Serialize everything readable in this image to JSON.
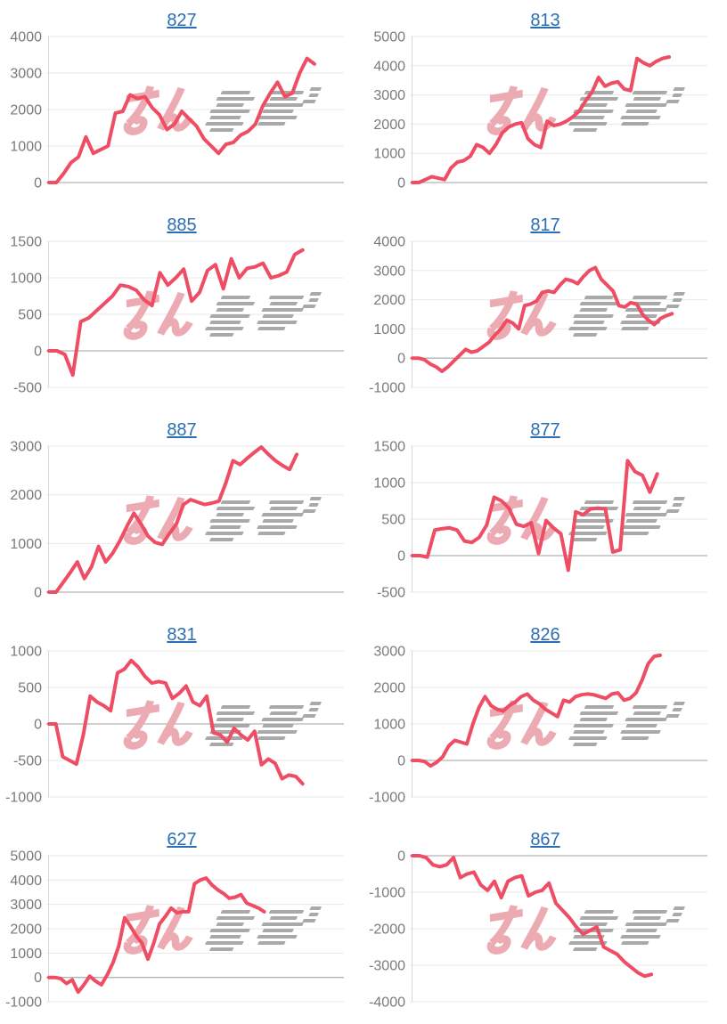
{
  "page": {
    "background": "#ffffff",
    "watermark_text": "みんレポ",
    "colors": {
      "title_link": "#2a6eb5",
      "series_line": "#ee4d64",
      "gridline": "#e8e8e8",
      "zero_line": "#b3b3b3",
      "axis_line": "#d8d8d8",
      "tick_label": "#7a7a7a",
      "watermark_pink": "#ecaab2",
      "watermark_gray": "#a2a2a2"
    }
  },
  "chart_data": [
    {
      "type": "line",
      "title": "827",
      "xlabel": "",
      "ylabel": "",
      "ylim": [
        0,
        4000
      ],
      "yticks": [
        4000,
        3000,
        2000,
        1000,
        0
      ],
      "grid": true,
      "legend": "none",
      "x_end_fraction": 0.9,
      "values": [
        0,
        0,
        250,
        550,
        700,
        1250,
        800,
        900,
        1000,
        1900,
        1950,
        2400,
        2300,
        2350,
        2050,
        1850,
        1450,
        1600,
        1950,
        1750,
        1550,
        1200,
        1000,
        800,
        1050,
        1100,
        1300,
        1400,
        1600,
        2100,
        2450,
        2750,
        2350,
        2450,
        3000,
        3400,
        3250
      ]
    },
    {
      "type": "line",
      "title": "813",
      "xlabel": "",
      "ylabel": "",
      "ylim": [
        0,
        5000
      ],
      "yticks": [
        5000,
        4000,
        3000,
        2000,
        1000,
        0
      ],
      "grid": true,
      "legend": "none",
      "x_end_fraction": 0.87,
      "values": [
        0,
        0,
        100,
        200,
        150,
        100,
        500,
        700,
        750,
        900,
        1300,
        1200,
        1000,
        1300,
        1700,
        1900,
        2000,
        2050,
        1500,
        1300,
        1200,
        2100,
        1950,
        2000,
        2100,
        2250,
        2450,
        2800,
        3100,
        3600,
        3300,
        3400,
        3450,
        3200,
        3150,
        4250,
        4100,
        4000,
        4150,
        4250,
        4300
      ]
    },
    {
      "type": "line",
      "title": "885",
      "xlabel": "",
      "ylabel": "",
      "ylim": [
        -500,
        1500
      ],
      "yticks": [
        1500,
        1000,
        500,
        0,
        -500
      ],
      "grid": true,
      "legend": "none",
      "x_end_fraction": 0.86,
      "values": [
        0,
        0,
        -50,
        -330,
        400,
        450,
        550,
        650,
        750,
        900,
        880,
        830,
        700,
        620,
        1070,
        900,
        1000,
        1120,
        680,
        800,
        1100,
        1180,
        850,
        1260,
        1000,
        1130,
        1150,
        1200,
        1000,
        1030,
        1080,
        1320,
        1380
      ]
    },
    {
      "type": "line",
      "title": "817",
      "xlabel": "",
      "ylabel": "",
      "ylim": [
        -1000,
        4000
      ],
      "yticks": [
        4000,
        3000,
        2000,
        1000,
        0,
        -1000
      ],
      "grid": true,
      "legend": "none",
      "x_end_fraction": 0.88,
      "values": [
        0,
        0,
        -50,
        -200,
        -300,
        -450,
        -300,
        -100,
        100,
        300,
        200,
        250,
        400,
        550,
        800,
        1000,
        1300,
        1200,
        1000,
        1800,
        1850,
        1950,
        2250,
        2300,
        2250,
        2500,
        2700,
        2650,
        2550,
        2800,
        3000,
        3100,
        2700,
        2500,
        2300,
        1800,
        1750,
        1900,
        1850,
        1500,
        1300,
        1150,
        1350,
        1450,
        1520
      ]
    },
    {
      "type": "line",
      "title": "887",
      "xlabel": "",
      "ylabel": "",
      "ylim": [
        0,
        3000
      ],
      "yticks": [
        3000,
        2000,
        1000,
        0
      ],
      "grid": true,
      "legend": "none",
      "x_end_fraction": 0.84,
      "values": [
        0,
        0,
        200,
        400,
        620,
        280,
        520,
        940,
        620,
        800,
        1050,
        1350,
        1620,
        1400,
        1150,
        1020,
        980,
        1200,
        1400,
        1800,
        1900,
        1850,
        1800,
        1830,
        1870,
        2250,
        2700,
        2620,
        2750,
        2870,
        2980,
        2830,
        2700,
        2600,
        2520,
        2830
      ]
    },
    {
      "type": "line",
      "title": "877",
      "xlabel": "",
      "ylabel": "",
      "ylim": [
        -500,
        1500
      ],
      "yticks": [
        1500,
        1000,
        500,
        0,
        -500
      ],
      "grid": true,
      "legend": "none",
      "x_end_fraction": 0.83,
      "values": [
        0,
        0,
        -20,
        350,
        370,
        380,
        350,
        200,
        180,
        250,
        420,
        800,
        750,
        650,
        430,
        400,
        450,
        30,
        480,
        380,
        300,
        -200,
        600,
        560,
        640,
        650,
        640,
        50,
        80,
        1300,
        1150,
        1100,
        870,
        1120
      ]
    },
    {
      "type": "line",
      "title": "831",
      "xlabel": "",
      "ylabel": "",
      "ylim": [
        -1000,
        1000
      ],
      "yticks": [
        1000,
        500,
        0,
        -500,
        -1000
      ],
      "grid": true,
      "legend": "none",
      "x_end_fraction": 0.86,
      "values": [
        0,
        0,
        -450,
        -500,
        -550,
        -150,
        380,
        300,
        250,
        180,
        700,
        750,
        870,
        780,
        650,
        560,
        580,
        560,
        350,
        420,
        520,
        300,
        250,
        380,
        -120,
        -150,
        -250,
        -60,
        -150,
        -220,
        -100,
        -560,
        -480,
        -540,
        -750,
        -700,
        -720,
        -820
      ]
    },
    {
      "type": "line",
      "title": "826",
      "xlabel": "",
      "ylabel": "",
      "ylim": [
        -1000,
        3000
      ],
      "yticks": [
        3000,
        2000,
        1000,
        0,
        -1000
      ],
      "grid": true,
      "legend": "none",
      "x_end_fraction": 0.84,
      "values": [
        0,
        0,
        -30,
        -150,
        -50,
        100,
        400,
        550,
        500,
        450,
        1000,
        1450,
        1750,
        1500,
        1400,
        1350,
        1500,
        1600,
        1750,
        1820,
        1650,
        1550,
        1400,
        1300,
        1200,
        1650,
        1600,
        1750,
        1800,
        1820,
        1800,
        1750,
        1700,
        1820,
        1850,
        1650,
        1700,
        1850,
        2200,
        2650,
        2850,
        2880
      ]
    },
    {
      "type": "line",
      "title": "627",
      "xlabel": "",
      "ylabel": "",
      "ylim": [
        -1000,
        5000
      ],
      "yticks": [
        5000,
        4000,
        3000,
        2000,
        1000,
        0,
        -1000
      ],
      "grid": true,
      "legend": "none",
      "x_end_fraction": 0.73,
      "values": [
        0,
        0,
        -50,
        -250,
        -100,
        -600,
        -300,
        50,
        -150,
        -300,
        100,
        600,
        1300,
        2450,
        2100,
        1700,
        1400,
        750,
        1400,
        2200,
        2500,
        2850,
        2650,
        2700,
        2700,
        3850,
        4000,
        4080,
        3800,
        3600,
        3450,
        3250,
        3300,
        3400,
        3050,
        2950,
        2850,
        2700
      ]
    },
    {
      "type": "line",
      "title": "867",
      "xlabel": "",
      "ylabel": "",
      "ylim": [
        -4000,
        0
      ],
      "yticks": [
        0,
        -1000,
        -2000,
        -3000,
        -4000
      ],
      "grid": true,
      "legend": "none",
      "x_end_fraction": 0.81,
      "values": [
        0,
        0,
        -50,
        -250,
        -300,
        -250,
        -50,
        -600,
        -500,
        -450,
        -800,
        -950,
        -700,
        -1150,
        -700,
        -600,
        -550,
        -1100,
        -1000,
        -950,
        -750,
        -1300,
        -1500,
        -1700,
        -1950,
        -2150,
        -2050,
        -1950,
        -2500,
        -2600,
        -2700,
        -2900,
        -3050,
        -3200,
        -3300,
        -3250
      ]
    }
  ]
}
